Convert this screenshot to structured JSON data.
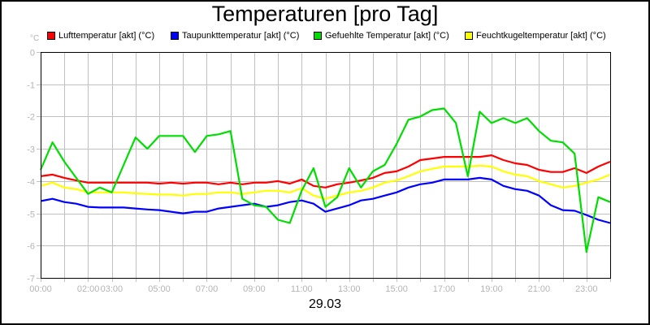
{
  "chart_data": {
    "type": "line",
    "title": "Temperaturen [pro Tag]",
    "xlabel": "29.03",
    "ylabel": "°C",
    "ylim": [
      -7,
      0
    ],
    "yticks": [
      0,
      -1,
      -2,
      -3,
      -4,
      -5,
      -6,
      -7
    ],
    "xlim_hours": [
      0,
      24
    ],
    "xtick_labels": [
      {
        "hour": 0,
        "label": "00:00"
      },
      {
        "hour": 2,
        "label": "02:00"
      },
      {
        "hour": 3,
        "label": "03:00"
      },
      {
        "hour": 5,
        "label": "05:00"
      },
      {
        "hour": 7,
        "label": "07:00"
      },
      {
        "hour": 9,
        "label": "09:00"
      },
      {
        "hour": 11,
        "label": "11:00"
      },
      {
        "hour": 13,
        "label": "13:00"
      },
      {
        "hour": 15,
        "label": "15:00"
      },
      {
        "hour": 17,
        "label": "17:00"
      },
      {
        "hour": 19,
        "label": "19:00"
      },
      {
        "hour": 21,
        "label": "21:00"
      },
      {
        "hour": 23,
        "label": "23:00"
      }
    ],
    "grid": true,
    "legend_position": "top",
    "x": [
      0,
      0.5,
      1,
      1.5,
      2,
      2.5,
      3,
      3.5,
      4,
      4.5,
      5,
      5.5,
      6,
      6.5,
      7,
      7.5,
      8,
      8.5,
      9,
      9.5,
      10,
      10.5,
      11,
      11.5,
      12,
      12.5,
      13,
      13.5,
      14,
      14.5,
      15,
      15.5,
      16,
      16.5,
      17,
      17.5,
      18,
      18.5,
      19,
      19.5,
      20,
      20.5,
      21,
      21.5,
      22,
      22.5,
      23,
      23.5,
      24
    ],
    "series": [
      {
        "name": "Lufttemperatur [akt] (°C)",
        "color": "#ff0000",
        "values": [
          -3.85,
          -3.8,
          -3.9,
          -3.98,
          -4.05,
          -4.05,
          -4.05,
          -4.05,
          -4.05,
          -4.05,
          -4.08,
          -4.05,
          -4.08,
          -4.05,
          -4.05,
          -4.1,
          -4.05,
          -4.1,
          -4.05,
          -4.05,
          -4.0,
          -4.08,
          -3.95,
          -4.15,
          -4.2,
          -4.1,
          -4.05,
          -3.98,
          -3.9,
          -3.75,
          -3.7,
          -3.55,
          -3.35,
          -3.3,
          -3.25,
          -3.25,
          -3.25,
          -3.25,
          -3.2,
          -3.35,
          -3.45,
          -3.5,
          -3.65,
          -3.72,
          -3.72,
          -3.6,
          -3.75,
          -3.55,
          -3.4
        ]
      },
      {
        "name": "Taupunkttemperatur [akt] (°C)",
        "color": "#0000ff",
        "values": [
          -4.62,
          -4.55,
          -4.65,
          -4.7,
          -4.8,
          -4.82,
          -4.82,
          -4.82,
          -4.85,
          -4.88,
          -4.9,
          -4.95,
          -5.0,
          -4.95,
          -4.95,
          -4.85,
          -4.8,
          -4.75,
          -4.7,
          -4.8,
          -4.75,
          -4.65,
          -4.6,
          -4.7,
          -4.95,
          -4.85,
          -4.75,
          -4.6,
          -4.55,
          -4.45,
          -4.35,
          -4.2,
          -4.1,
          -4.05,
          -3.95,
          -3.95,
          -3.95,
          -3.9,
          -3.95,
          -4.15,
          -4.25,
          -4.3,
          -4.45,
          -4.75,
          -4.9,
          -4.92,
          -5.05,
          -5.2,
          -5.3
        ]
      },
      {
        "name": "Gefuehlte Temperatur [akt] (°C)",
        "color": "#00dd00",
        "values": [
          -3.65,
          -2.8,
          -3.4,
          -3.9,
          -4.4,
          -4.2,
          -4.35,
          -3.5,
          -2.65,
          -3.0,
          -2.6,
          -2.6,
          -2.6,
          -3.1,
          -2.6,
          -2.55,
          -2.45,
          -4.55,
          -4.75,
          -4.8,
          -5.2,
          -5.3,
          -4.3,
          -3.6,
          -4.8,
          -4.5,
          -3.6,
          -4.2,
          -3.7,
          -3.5,
          -2.85,
          -2.1,
          -2.0,
          -1.8,
          -1.75,
          -2.2,
          -3.85,
          -1.85,
          -2.2,
          -2.05,
          -2.2,
          -2.05,
          -2.45,
          -2.75,
          -2.8,
          -3.15,
          -6.2,
          -4.5,
          -4.65
        ]
      },
      {
        "name": "Feuchtkugeltemperatur [akt] (°C)",
        "color": "#ffff00",
        "values": [
          -4.15,
          -4.05,
          -4.2,
          -4.25,
          -4.35,
          -4.35,
          -4.35,
          -4.35,
          -4.38,
          -4.4,
          -4.42,
          -4.42,
          -4.45,
          -4.4,
          -4.4,
          -4.35,
          -4.35,
          -4.4,
          -4.35,
          -4.3,
          -4.3,
          -4.35,
          -4.22,
          -4.45,
          -4.55,
          -4.45,
          -4.35,
          -4.3,
          -4.2,
          -4.05,
          -3.98,
          -3.85,
          -3.7,
          -3.62,
          -3.55,
          -3.55,
          -3.55,
          -3.52,
          -3.55,
          -3.7,
          -3.8,
          -3.85,
          -4.0,
          -4.1,
          -4.2,
          -4.15,
          -4.05,
          -3.95,
          -3.8
        ]
      }
    ]
  },
  "header": {
    "title": "Temperaturen [pro Tag]",
    "unit_label": "°C"
  },
  "legend": {
    "items": [
      {
        "label": "Lufttemperatur [akt] (°C)",
        "color": "#ff0000"
      },
      {
        "label": "Taupunkttemperatur [akt] (°C)",
        "color": "#0000ff"
      },
      {
        "label": "Gefuehlte Temperatur [akt] (°C)",
        "color": "#00dd00"
      },
      {
        "label": "Feuchtkugeltemperatur [akt] (°C)",
        "color": "#ffff00"
      }
    ]
  },
  "footer": {
    "date": "29.03"
  },
  "colors": {
    "grid": "#c0c0c0",
    "axis": "#000000",
    "tick_label": "#b4b4b4"
  }
}
